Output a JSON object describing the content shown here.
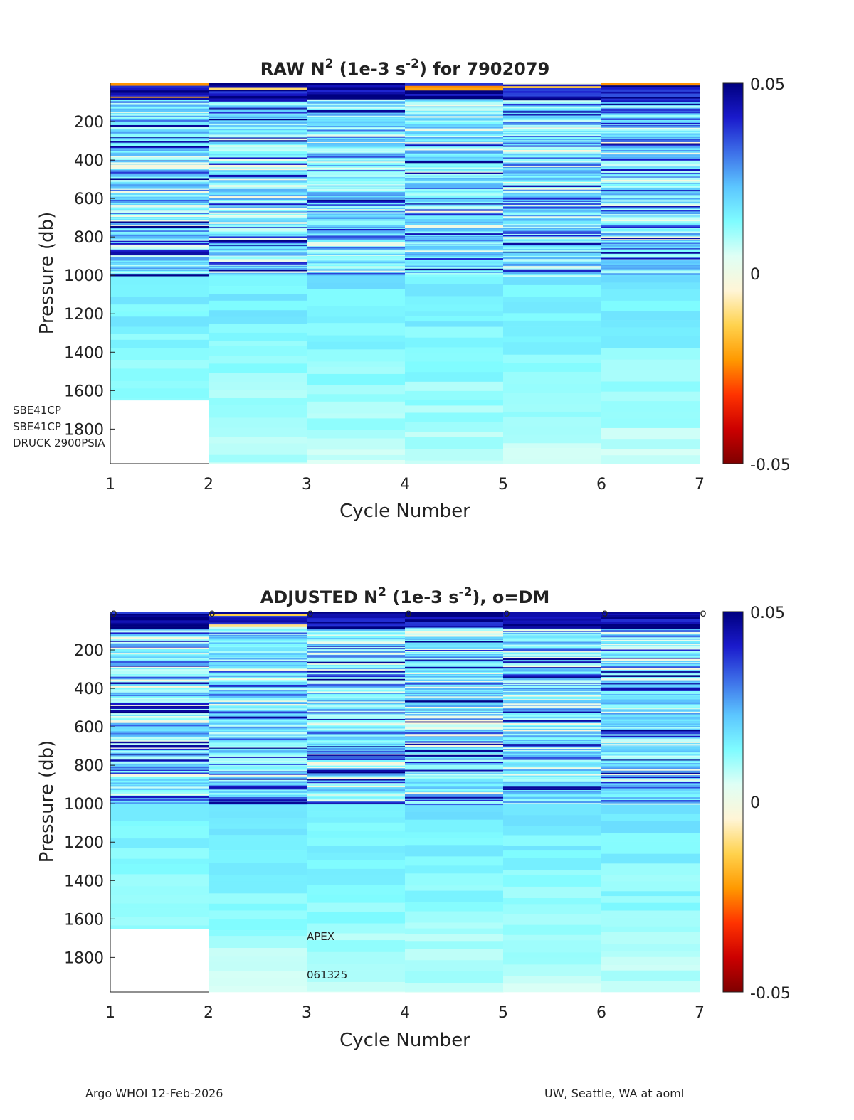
{
  "footer": {
    "left": "Argo WHOI 12-Feb-2026",
    "right": "UW, Seattle, WA at aoml"
  },
  "colorbar_colors": [
    "#7f0000",
    "#cc0000",
    "#ff3300",
    "#ff9900",
    "#ffd24d",
    "#fff5d6",
    "#dffff5",
    "#7ffcff",
    "#5cc6ff",
    "#3d6fe8",
    "#1a1acc",
    "#00007f"
  ],
  "chart_data": [
    {
      "type": "heatmap",
      "title_main": "RAW N",
      "title_sup": "2",
      "title_mid": " (1e-3 s",
      "title_sup2": "-2",
      "title_end": ") for 7902079",
      "xlabel": "Cycle Number",
      "ylabel": "Pressure (db)",
      "x_ticks": [
        "1",
        "2",
        "3",
        "4",
        "5",
        "6",
        "7"
      ],
      "y_ticks": [
        "200",
        "400",
        "600",
        "800",
        "1000",
        "1200",
        "1400",
        "1600",
        "1800"
      ],
      "xlim": [
        1,
        7
      ],
      "ylim": [
        0,
        1980
      ],
      "clim": [
        -0.05,
        0.05
      ],
      "colorbar_ticks": [
        "0.05",
        "0",
        "-0.05"
      ],
      "cycles": [
        1,
        2,
        3,
        4,
        5,
        6
      ],
      "max_pressure": [
        1650,
        1980,
        1980,
        1980,
        1980,
        1980
      ],
      "seeds": [
        11,
        23,
        37,
        41,
        53,
        67
      ],
      "annotations": [
        "SBE41CP",
        "SBE41CP",
        "DRUCK 2900PSIA"
      ],
      "dm_markers": false
    },
    {
      "type": "heatmap",
      "title_main": "ADJUSTED N",
      "title_sup": "2",
      "title_mid": " (1e-3 s",
      "title_sup2": "-2",
      "title_end": "), o=DM",
      "xlabel": "Cycle Number",
      "ylabel": "Pressure (db)",
      "x_ticks": [
        "1",
        "2",
        "3",
        "4",
        "5",
        "6",
        "7"
      ],
      "y_ticks": [
        "200",
        "400",
        "600",
        "800",
        "1000",
        "1200",
        "1400",
        "1600",
        "1800"
      ],
      "xlim": [
        1,
        7
      ],
      "ylim": [
        0,
        1980
      ],
      "clim": [
        -0.05,
        0.05
      ],
      "colorbar_ticks": [
        "0.05",
        "0",
        "-0.05"
      ],
      "cycles": [
        1,
        2,
        3,
        4,
        5,
        6
      ],
      "max_pressure": [
        1650,
        1980,
        1980,
        1980,
        1980,
        1980
      ],
      "seeds": [
        12,
        24,
        38,
        42,
        54,
        68
      ],
      "annotations": [
        "APEX",
        "061325"
      ],
      "dm_markers": true,
      "dm_marker_symbol": "o",
      "dm_cycles": [
        1,
        2,
        3,
        4,
        5,
        6,
        7
      ]
    }
  ]
}
